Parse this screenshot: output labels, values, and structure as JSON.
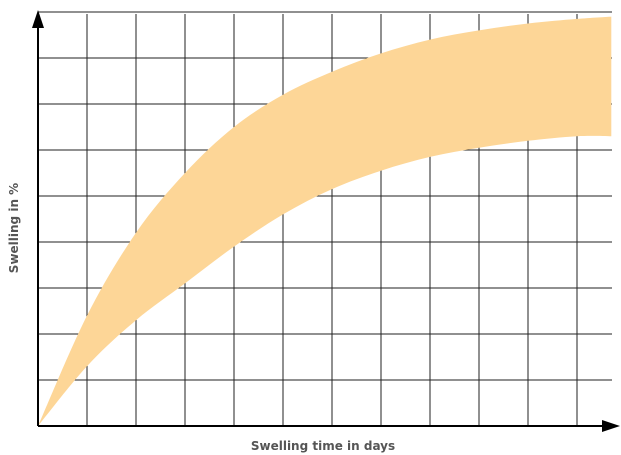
{
  "chart_data": {
    "type": "area",
    "title": "",
    "xlabel": "Swelling time in days",
    "ylabel": "Swelling in %",
    "xlim": [
      0,
      12
    ],
    "ylim": [
      0,
      9
    ],
    "grid": true,
    "tick_labels": false,
    "band": {
      "x": [
        0,
        1,
        2,
        3,
        4,
        5,
        6,
        7,
        8,
        9,
        10,
        11,
        11.7
      ],
      "upper": [
        0,
        2.4,
        4.2,
        5.5,
        6.5,
        7.2,
        7.7,
        8.1,
        8.4,
        8.6,
        8.75,
        8.85,
        8.9
      ],
      "lower": [
        0,
        1.3,
        2.3,
        3.1,
        3.9,
        4.6,
        5.15,
        5.55,
        5.85,
        6.05,
        6.2,
        6.3,
        6.3
      ]
    },
    "colors": {
      "band": "#fdd697",
      "grid": "#222222",
      "axis": "#000000"
    }
  }
}
